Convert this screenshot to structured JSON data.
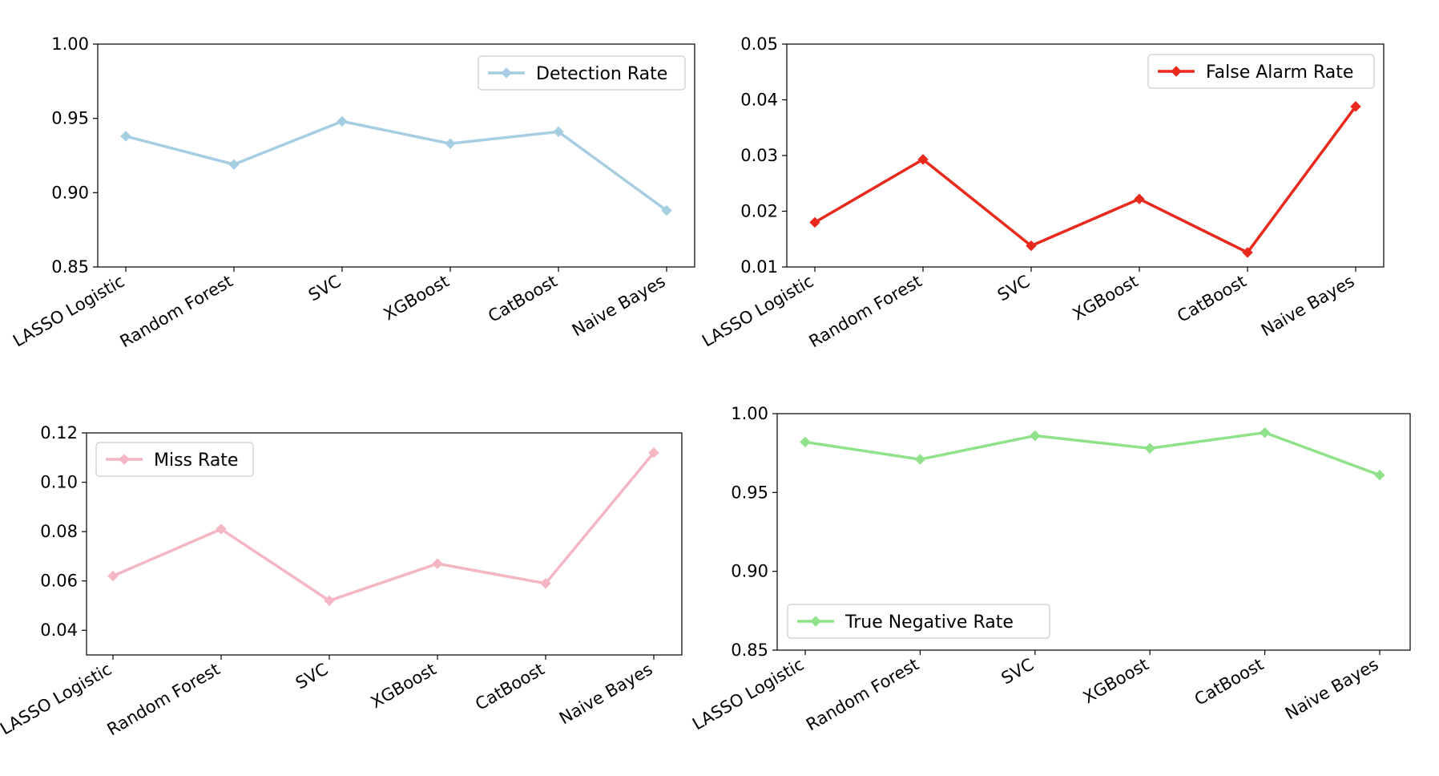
{
  "chart_data": [
    {
      "type": "line",
      "categories": [
        "LASSO Logistic",
        "Random Forest",
        "SVC",
        "XGBoost",
        "CatBoost",
        "Naive Bayes"
      ],
      "series": [
        {
          "name": "Detection Rate",
          "values": [
            0.938,
            0.919,
            0.948,
            0.933,
            0.941,
            0.888
          ],
          "color": "#a6cee3"
        }
      ],
      "ylim": [
        0.85,
        1.0
      ],
      "yticks": [
        "0.85",
        "0.90",
        "0.95",
        "1.00"
      ],
      "legend": "top-right"
    },
    {
      "type": "line",
      "categories": [
        "LASSO Logistic",
        "Random Forest",
        "SVC",
        "XGBoost",
        "CatBoost",
        "Naive Bayes"
      ],
      "series": [
        {
          "name": "False Alarm Rate",
          "values": [
            0.018,
            0.0293,
            0.0138,
            0.0222,
            0.0126,
            0.0388
          ],
          "color": "#e8291c"
        }
      ],
      "ylim": [
        0.01,
        0.05
      ],
      "yticks": [
        "0.01",
        "0.02",
        "0.03",
        "0.04",
        "0.05"
      ],
      "legend": "top-right"
    },
    {
      "type": "line",
      "categories": [
        "LASSO Logistic",
        "Random Forest",
        "SVC",
        "XGBoost",
        "CatBoost",
        "Naive Bayes"
      ],
      "series": [
        {
          "name": "Miss Rate",
          "values": [
            0.062,
            0.081,
            0.052,
            0.067,
            0.059,
            0.112
          ],
          "color": "#f4b6c2"
        }
      ],
      "ylim": [
        0.03,
        0.12
      ],
      "yticks": [
        "0.04",
        "0.06",
        "0.08",
        "0.10",
        "0.12"
      ],
      "legend": "top-left"
    },
    {
      "type": "line",
      "categories": [
        "LASSO Logistic",
        "Random Forest",
        "SVC",
        "XGBoost",
        "CatBoost",
        "Naive Bayes"
      ],
      "series": [
        {
          "name": "True Negative Rate",
          "values": [
            0.982,
            0.971,
            0.986,
            0.978,
            0.988,
            0.961
          ],
          "color": "#90e28a"
        }
      ],
      "ylim": [
        0.85,
        1.0
      ],
      "yticks": [
        "0.85",
        "0.90",
        "0.95",
        "1.00"
      ],
      "legend": "bottom-left"
    }
  ]
}
